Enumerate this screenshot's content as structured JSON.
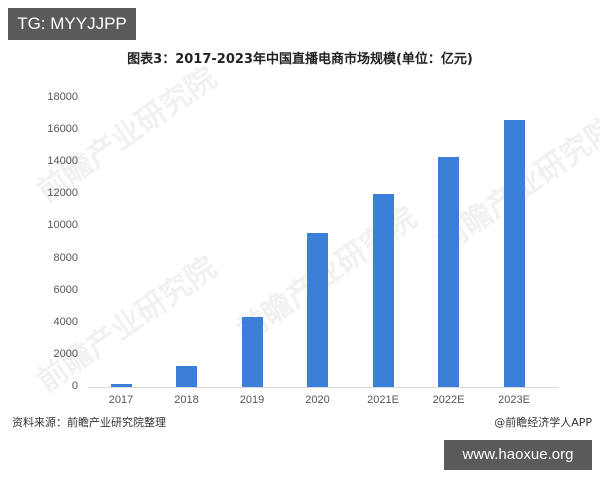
{
  "badge": {
    "tg": "TG: MYYJJPP"
  },
  "footer": {
    "source": "资料来源：前瞻产业研究院整理",
    "credit": "@前瞻经济学人APP",
    "site": "www.haoxue.org"
  },
  "watermark": {
    "text": "前瞻产业研究院"
  },
  "colors": {
    "bar": "#3b7fd9",
    "badge_bg": "#5a5a5a"
  },
  "chart_data": {
    "type": "bar",
    "title": "图表3：2017-2023年中国直播电商市场规模(单位：亿元)",
    "xlabel": "",
    "ylabel": "",
    "categories": [
      "2017",
      "2018",
      "2019",
      "2020",
      "2021E",
      "2022E",
      "2023E"
    ],
    "values": [
      190,
      1330,
      4340,
      9610,
      12010,
      14300,
      16600
    ],
    "ylim": [
      0,
      18000
    ],
    "yticks": [
      "0",
      "2000",
      "4000",
      "6000",
      "8000",
      "10000",
      "12000",
      "14000",
      "16000",
      "18000"
    ],
    "grid": false,
    "legend": null
  }
}
